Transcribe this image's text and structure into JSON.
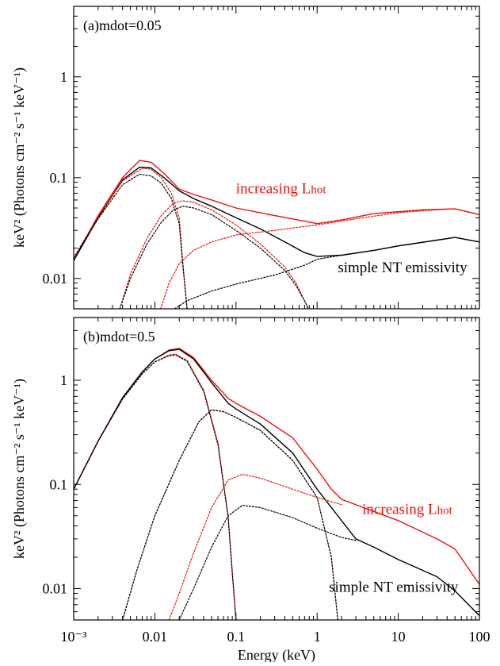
{
  "chart_data": [
    {
      "type": "line",
      "panel_label": "(a)mdot=0.05",
      "xscale": "log",
      "yscale": "log",
      "xlim": [
        0.001,
        100
      ],
      "ylim": [
        0.005,
        5
      ],
      "xlabel": "Energy (keV)",
      "ylabel": "keV² (Photons cm⁻² s⁻¹ keV⁻¹)",
      "xticks": [
        "10⁻³",
        "0.01",
        "0.1",
        "1",
        "10",
        "100"
      ],
      "yticks": [
        "0.01",
        "0.1",
        "1"
      ],
      "annotations": [
        {
          "text": "increasing L",
          "sub": "hot",
          "color": "#e8140a",
          "at": [
            0.1,
            0.07
          ]
        },
        {
          "text": "simple NT emissivity",
          "color": "#000000",
          "at": [
            1.8,
            0.0115
          ]
        }
      ],
      "series": [
        {
          "color": "#e8140a",
          "style": "solid",
          "points": [
            [
              0.001,
              0.015
            ],
            [
              0.002,
              0.042
            ],
            [
              0.004,
              0.1
            ],
            [
              0.0065,
              0.148
            ],
            [
              0.009,
              0.142
            ],
            [
              0.013,
              0.11
            ],
            [
              0.02,
              0.077
            ],
            [
              0.03,
              0.068
            ],
            [
              0.05,
              0.06
            ],
            [
              0.1,
              0.05
            ],
            [
              0.3,
              0.042
            ],
            [
              0.7,
              0.037
            ],
            [
              1,
              0.035
            ],
            [
              2,
              0.038
            ],
            [
              5,
              0.044
            ],
            [
              20,
              0.048
            ],
            [
              50,
              0.049
            ],
            [
              100,
              0.043
            ]
          ]
        },
        {
          "color": "#000000",
          "style": "solid",
          "points": [
            [
              0.001,
              0.015
            ],
            [
              0.002,
              0.04
            ],
            [
              0.004,
              0.095
            ],
            [
              0.0065,
              0.127
            ],
            [
              0.009,
              0.125
            ],
            [
              0.013,
              0.1
            ],
            [
              0.02,
              0.074
            ],
            [
              0.03,
              0.062
            ],
            [
              0.05,
              0.052
            ],
            [
              0.1,
              0.04
            ],
            [
              0.2,
              0.031
            ],
            [
              0.4,
              0.023
            ],
            [
              0.7,
              0.018
            ],
            [
              1,
              0.0165
            ],
            [
              2,
              0.017
            ],
            [
              5,
              0.019
            ],
            [
              10,
              0.021
            ],
            [
              30,
              0.024
            ],
            [
              50,
              0.0255
            ],
            [
              100,
              0.023
            ]
          ]
        },
        {
          "color": "#e8140a",
          "style": "dotted",
          "points": [
            [
              0.001,
              0.016
            ],
            [
              0.002,
              0.041
            ],
            [
              0.004,
              0.093
            ],
            [
              0.007,
              0.124
            ],
            [
              0.009,
              0.121
            ],
            [
              0.012,
              0.1
            ],
            [
              0.016,
              0.07
            ],
            [
              0.02,
              0.04
            ],
            [
              0.022,
              0.015
            ],
            [
              0.024,
              0.007
            ],
            [
              0.025,
              0.005
            ]
          ]
        },
        {
          "color": "#000000",
          "style": "dotted",
          "points": [
            [
              0.001,
              0.016
            ],
            [
              0.002,
              0.039
            ],
            [
              0.004,
              0.085
            ],
            [
              0.0065,
              0.108
            ],
            [
              0.009,
              0.104
            ],
            [
              0.012,
              0.088
            ],
            [
              0.016,
              0.062
            ],
            [
              0.02,
              0.035
            ],
            [
              0.022,
              0.014
            ],
            [
              0.024,
              0.007
            ],
            [
              0.025,
              0.005
            ]
          ]
        },
        {
          "color": "#e8140a",
          "style": "dotted",
          "points": [
            [
              0.0037,
              0.005
            ],
            [
              0.005,
              0.011
            ],
            [
              0.008,
              0.025
            ],
            [
              0.012,
              0.042
            ],
            [
              0.017,
              0.056
            ],
            [
              0.022,
              0.059
            ],
            [
              0.03,
              0.057
            ],
            [
              0.05,
              0.048
            ],
            [
              0.1,
              0.034
            ],
            [
              0.2,
              0.022
            ],
            [
              0.4,
              0.013
            ],
            [
              0.55,
              0.009
            ],
            [
              0.7,
              0.006
            ],
            [
              0.78,
              0.005
            ]
          ]
        },
        {
          "color": "#000000",
          "style": "dotted",
          "points": [
            [
              0.0037,
              0.005
            ],
            [
              0.005,
              0.01
            ],
            [
              0.008,
              0.022
            ],
            [
              0.012,
              0.036
            ],
            [
              0.017,
              0.048
            ],
            [
              0.022,
              0.052
            ],
            [
              0.03,
              0.05
            ],
            [
              0.05,
              0.043
            ],
            [
              0.1,
              0.03
            ],
            [
              0.2,
              0.02
            ],
            [
              0.4,
              0.012
            ],
            [
              0.55,
              0.0085
            ],
            [
              0.7,
              0.006
            ],
            [
              0.78,
              0.005
            ]
          ]
        },
        {
          "color": "#e8140a",
          "style": "dotted",
          "points": [
            [
              0.0118,
              0.005
            ],
            [
              0.015,
              0.009
            ],
            [
              0.02,
              0.014
            ],
            [
              0.03,
              0.019
            ],
            [
              0.05,
              0.023
            ],
            [
              0.1,
              0.027
            ],
            [
              0.3,
              0.03
            ],
            [
              1,
              0.034
            ],
            [
              3,
              0.039
            ],
            [
              10,
              0.045
            ],
            [
              30,
              0.048
            ],
            [
              50,
              0.049
            ],
            [
              100,
              0.043
            ]
          ]
        },
        {
          "color": "#000000",
          "style": "dotted",
          "points": [
            [
              0.0175,
              0.005
            ],
            [
              0.025,
              0.006
            ],
            [
              0.05,
              0.0075
            ],
            [
              0.1,
              0.0088
            ],
            [
              0.3,
              0.0108
            ],
            [
              0.7,
              0.0135
            ],
            [
              1,
              0.0155
            ],
            [
              2,
              0.017
            ],
            [
              5,
              0.019
            ],
            [
              10,
              0.021
            ],
            [
              30,
              0.024
            ],
            [
              50,
              0.0255
            ],
            [
              100,
              0.023
            ]
          ]
        }
      ]
    },
    {
      "type": "line",
      "panel_label": "(b)mdot=0.5",
      "xscale": "log",
      "yscale": "log",
      "xlim": [
        0.001,
        100
      ],
      "ylim": [
        0.005,
        4
      ],
      "xlabel": "Energy (keV)",
      "ylabel": "keV² (Photons cm⁻² s⁻¹ keV⁻¹)",
      "xticks": [
        "10⁻³",
        "0.01",
        "0.1",
        "1",
        "10",
        "100"
      ],
      "yticks": [
        "0.01",
        "0.1",
        "1"
      ],
      "annotations": [
        {
          "text": "increasing L",
          "sub": "hot",
          "color": "#e8140a",
          "at": [
            3.6,
            0.052
          ]
        },
        {
          "text": "simple NT emissivity",
          "color": "#000000",
          "at": [
            1.4,
            0.0093
          ]
        }
      ],
      "series": [
        {
          "color": "#e8140a",
          "style": "solid",
          "points": [
            [
              0.001,
              0.09
            ],
            [
              0.002,
              0.26
            ],
            [
              0.004,
              0.68
            ],
            [
              0.007,
              1.2
            ],
            [
              0.01,
              1.6
            ],
            [
              0.015,
              1.95
            ],
            [
              0.02,
              2.02
            ],
            [
              0.03,
              1.65
            ],
            [
              0.05,
              1.0
            ],
            [
              0.08,
              0.67
            ],
            [
              0.1,
              0.6
            ],
            [
              0.2,
              0.45
            ],
            [
              0.5,
              0.28
            ],
            [
              1,
              0.14
            ],
            [
              1.5,
              0.09
            ],
            [
              2,
              0.072
            ],
            [
              5,
              0.055
            ],
            [
              10,
              0.045
            ],
            [
              30,
              0.03
            ],
            [
              50,
              0.024
            ],
            [
              100,
              0.011
            ]
          ]
        },
        {
          "color": "#000000",
          "style": "solid",
          "points": [
            [
              0.001,
              0.09
            ],
            [
              0.002,
              0.26
            ],
            [
              0.004,
              0.68
            ],
            [
              0.007,
              1.2
            ],
            [
              0.01,
              1.6
            ],
            [
              0.015,
              1.92
            ],
            [
              0.02,
              1.98
            ],
            [
              0.03,
              1.6
            ],
            [
              0.05,
              0.95
            ],
            [
              0.08,
              0.6
            ],
            [
              0.1,
              0.53
            ],
            [
              0.2,
              0.38
            ],
            [
              0.5,
              0.2
            ],
            [
              1,
              0.09
            ],
            [
              2,
              0.045
            ],
            [
              3,
              0.03
            ],
            [
              5,
              0.025
            ],
            [
              10,
              0.019
            ],
            [
              30,
              0.013
            ],
            [
              50,
              0.0095
            ],
            [
              100,
              0.0055
            ]
          ]
        },
        {
          "color": "#e8140a",
          "style": "dotted",
          "points": [
            [
              0.001,
              0.09
            ],
            [
              0.002,
              0.26
            ],
            [
              0.004,
              0.66
            ],
            [
              0.007,
              1.15
            ],
            [
              0.01,
              1.5
            ],
            [
              0.015,
              1.75
            ],
            [
              0.018,
              1.78
            ],
            [
              0.025,
              1.55
            ],
            [
              0.04,
              0.8
            ],
            [
              0.06,
              0.25
            ],
            [
              0.08,
              0.05
            ],
            [
              0.09,
              0.015
            ],
            [
              0.1,
              0.005
            ]
          ]
        },
        {
          "color": "#000000",
          "style": "dotted",
          "points": [
            [
              0.001,
              0.09
            ],
            [
              0.002,
              0.26
            ],
            [
              0.004,
              0.66
            ],
            [
              0.007,
              1.15
            ],
            [
              0.01,
              1.5
            ],
            [
              0.015,
              1.72
            ],
            [
              0.018,
              1.75
            ],
            [
              0.025,
              1.52
            ],
            [
              0.04,
              0.78
            ],
            [
              0.06,
              0.24
            ],
            [
              0.08,
              0.048
            ],
            [
              0.09,
              0.014
            ],
            [
              0.1,
              0.005
            ]
          ]
        },
        {
          "color": "#e8140a",
          "style": "dotted",
          "points": [
            [
              0.004,
              0.005
            ],
            [
              0.006,
              0.015
            ],
            [
              0.01,
              0.05
            ],
            [
              0.02,
              0.17
            ],
            [
              0.035,
              0.4
            ],
            [
              0.05,
              0.52
            ],
            [
              0.07,
              0.5
            ],
            [
              0.1,
              0.44
            ],
            [
              0.2,
              0.33
            ],
            [
              0.5,
              0.17
            ],
            [
              1,
              0.075
            ],
            [
              1.5,
              0.02
            ],
            [
              1.8,
              0.005
            ]
          ]
        },
        {
          "color": "#000000",
          "style": "dotted",
          "points": [
            [
              0.004,
              0.005
            ],
            [
              0.006,
              0.015
            ],
            [
              0.01,
              0.05
            ],
            [
              0.02,
              0.17
            ],
            [
              0.035,
              0.4
            ],
            [
              0.05,
              0.52
            ],
            [
              0.07,
              0.5
            ],
            [
              0.1,
              0.44
            ],
            [
              0.2,
              0.33
            ],
            [
              0.5,
              0.17
            ],
            [
              1,
              0.075
            ],
            [
              1.5,
              0.02
            ],
            [
              1.8,
              0.005
            ]
          ]
        },
        {
          "color": "#e8140a",
          "style": "dotted",
          "points": [
            [
              0.015,
              0.005
            ],
            [
              0.02,
              0.009
            ],
            [
              0.03,
              0.022
            ],
            [
              0.05,
              0.06
            ],
            [
              0.08,
              0.11
            ],
            [
              0.12,
              0.125
            ],
            [
              0.2,
              0.115
            ],
            [
              0.5,
              0.09
            ],
            [
              1,
              0.075
            ],
            [
              2,
              0.064
            ]
          ]
        },
        {
          "color": "#000000",
          "style": "dotted",
          "points": [
            [
              0.02,
              0.005
            ],
            [
              0.03,
              0.01
            ],
            [
              0.05,
              0.025
            ],
            [
              0.08,
              0.05
            ],
            [
              0.12,
              0.063
            ],
            [
              0.2,
              0.06
            ],
            [
              0.5,
              0.048
            ],
            [
              1,
              0.038
            ],
            [
              2,
              0.031
            ],
            [
              3,
              0.029
            ]
          ]
        }
      ]
    }
  ]
}
